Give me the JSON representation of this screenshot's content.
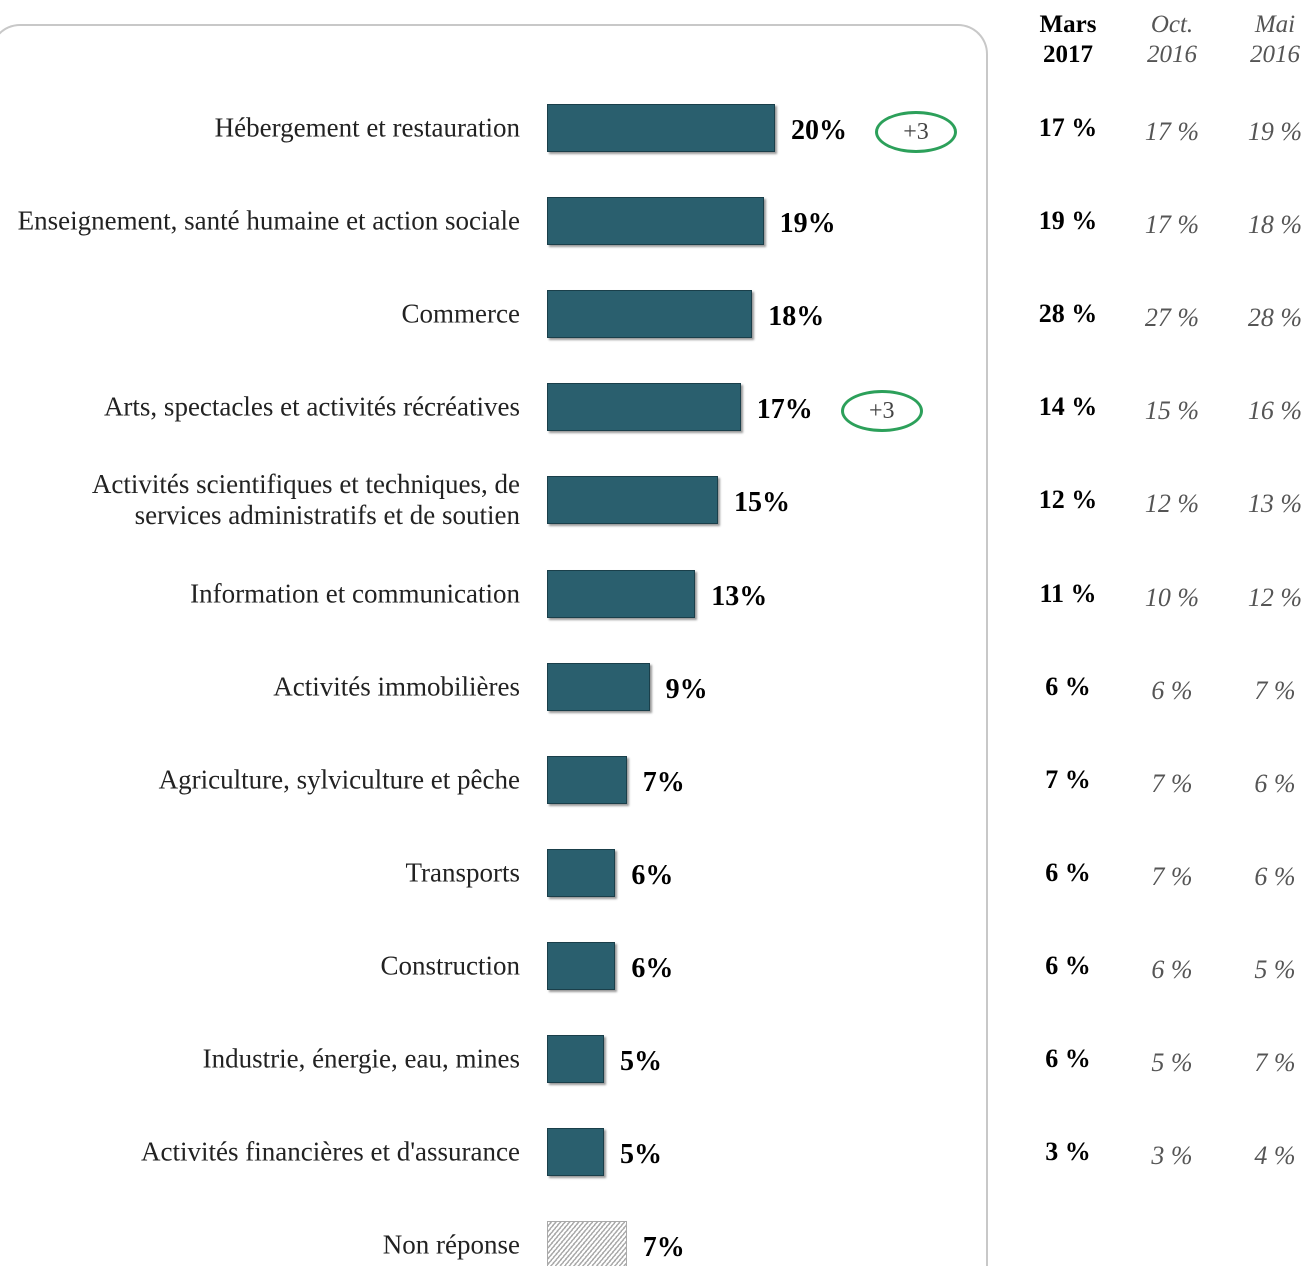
{
  "chart_data": {
    "type": "bar",
    "orientation": "horizontal",
    "categories": [
      "Hébergement et restauration",
      "Enseignement, santé humaine et action sociale",
      "Commerce",
      "Arts, spectacles et activités récréatives",
      "Activités scientifiques et techniques, de services administratifs et de soutien",
      "Information et communication",
      "Activités immobilières",
      "Agriculture, sylviculture et pêche",
      "Transports",
      "Construction",
      "Industrie, énergie, eau, mines",
      "Activités financières et d'assurance",
      "Non réponse"
    ],
    "values": [
      20,
      19,
      18,
      17,
      15,
      13,
      9,
      7,
      6,
      6,
      5,
      5,
      7
    ],
    "value_labels": [
      "20%",
      "19%",
      "18%",
      "17%",
      "15%",
      "13%",
      "9%",
      "7%",
      "6%",
      "6%",
      "5%",
      "5%",
      "7%"
    ],
    "change_labels": [
      "+3",
      null,
      null,
      "+3",
      null,
      null,
      null,
      null,
      null,
      null,
      null,
      null,
      null
    ],
    "pattern": [
      null,
      null,
      null,
      null,
      null,
      null,
      null,
      null,
      null,
      null,
      null,
      null,
      "hatch"
    ],
    "color": "#2a5f6e"
  },
  "table": {
    "columns": [
      "Mars 2017",
      "Oct. 2016",
      "Mai 2016"
    ],
    "rows": [
      [
        "17 %",
        "17 %",
        "19 %"
      ],
      [
        "19 %",
        "17 %",
        "18 %"
      ],
      [
        "28 %",
        "27 %",
        "28 %"
      ],
      [
        "14 %",
        "15 %",
        "16 %"
      ],
      [
        "12 %",
        "12 %",
        "13 %"
      ],
      [
        "11 %",
        "10 %",
        "12 %"
      ],
      [
        "6 %",
        "6 %",
        "7 %"
      ],
      [
        "7 %",
        "7 %",
        "6 %"
      ],
      [
        "6 %",
        "7 %",
        "6 %"
      ],
      [
        "6 %",
        "6 %",
        "5 %"
      ],
      [
        "6 %",
        "5 %",
        "7 %"
      ],
      [
        "3 %",
        "3 %",
        "4 %"
      ]
    ]
  }
}
